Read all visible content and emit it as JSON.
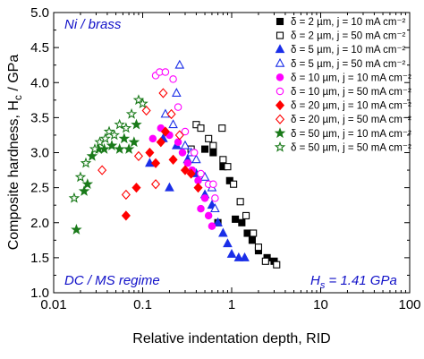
{
  "chart_data": {
    "type": "scatter",
    "title": "",
    "xlabel": "Relative indentation depth, RID",
    "ylabel": "Composite hardness, H_c / GPa",
    "xscale": "log",
    "xlim": [
      0.01,
      100
    ],
    "ylim": [
      1.0,
      5.0
    ],
    "xticks": [
      0.01,
      0.1,
      1,
      10,
      100
    ],
    "xtick_labels": [
      "0.01",
      "0.1",
      "1",
      "10",
      "100"
    ],
    "yticks": [
      1.0,
      1.5,
      2.0,
      2.5,
      3.0,
      3.5,
      4.0,
      4.5,
      5.0
    ],
    "ytick_labels": [
      "1.0",
      "1.5",
      "2.0",
      "2.5",
      "3.0",
      "3.5",
      "4.0",
      "4.5",
      "5.0"
    ],
    "grid": false,
    "legend_position": "top-right",
    "annotations": {
      "top_left": "Ni / brass",
      "bottom_left": "DC / MS regime",
      "bottom_right": "H_s = 1.41 GPa"
    },
    "series": [
      {
        "name": "δ = 2 µm, j = 10 mA cm⁻²",
        "marker": "square",
        "filled": true,
        "color": "#000000",
        "points": [
          [
            0.5,
            3.05
          ],
          [
            0.62,
            3.0
          ],
          [
            0.8,
            2.8
          ],
          [
            0.7,
            2.0
          ],
          [
            0.95,
            2.6
          ],
          [
            1.1,
            2.05
          ],
          [
            1.3,
            2.0
          ],
          [
            1.5,
            1.85
          ],
          [
            1.7,
            1.75
          ],
          [
            2.0,
            1.6
          ],
          [
            2.5,
            1.5
          ],
          [
            3.0,
            1.45
          ]
        ]
      },
      {
        "name": "δ = 2 µm, j = 50 mA cm⁻²",
        "marker": "square",
        "filled": false,
        "color": "#000000",
        "points": [
          [
            0.35,
            3.05
          ],
          [
            0.4,
            3.4
          ],
          [
            0.45,
            3.35
          ],
          [
            0.55,
            3.2
          ],
          [
            0.62,
            3.1
          ],
          [
            0.78,
            3.35
          ],
          [
            0.8,
            2.9
          ],
          [
            0.9,
            2.8
          ],
          [
            1.05,
            2.55
          ],
          [
            1.25,
            2.3
          ],
          [
            1.45,
            2.1
          ],
          [
            1.75,
            1.85
          ],
          [
            2.0,
            1.65
          ],
          [
            2.4,
            1.45
          ],
          [
            3.2,
            1.4
          ]
        ]
      },
      {
        "name": "δ = 5 µm, j = 10 mA cm⁻²",
        "marker": "triangle",
        "filled": true,
        "color": "#1a2ee8",
        "points": [
          [
            0.12,
            2.85
          ],
          [
            0.17,
            3.2
          ],
          [
            0.24,
            3.1
          ],
          [
            0.2,
            2.5
          ],
          [
            0.32,
            2.9
          ],
          [
            0.4,
            2.7
          ],
          [
            0.5,
            2.4
          ],
          [
            0.6,
            2.25
          ],
          [
            0.7,
            2.0
          ],
          [
            0.8,
            1.85
          ],
          [
            0.9,
            1.7
          ],
          [
            1.0,
            1.55
          ],
          [
            1.2,
            1.5
          ],
          [
            1.4,
            1.5
          ]
        ]
      },
      {
        "name": "δ = 5 µm, j = 50 mA cm⁻²",
        "marker": "triangle",
        "filled": false,
        "color": "#1a2ee8",
        "points": [
          [
            0.26,
            4.25
          ],
          [
            0.24,
            3.85
          ],
          [
            0.18,
            3.55
          ],
          [
            0.22,
            3.4
          ],
          [
            0.3,
            3.1
          ],
          [
            0.35,
            3.0
          ],
          [
            0.4,
            2.9
          ],
          [
            0.5,
            2.65
          ],
          [
            0.6,
            2.5
          ],
          [
            0.65,
            2.2
          ]
        ]
      },
      {
        "name": "δ = 10 µm, j = 10 mA cm⁻²",
        "marker": "circle",
        "filled": true,
        "color": "#ff00ff",
        "points": [
          [
            0.13,
            3.2
          ],
          [
            0.16,
            3.35
          ],
          [
            0.2,
            3.25
          ],
          [
            0.25,
            3.15
          ],
          [
            0.28,
            3.0
          ],
          [
            0.32,
            2.85
          ],
          [
            0.36,
            2.75
          ],
          [
            0.42,
            2.6
          ],
          [
            0.45,
            2.2
          ],
          [
            0.5,
            2.35
          ],
          [
            0.55,
            2.1
          ],
          [
            0.6,
            1.95
          ]
        ]
      },
      {
        "name": "δ = 10 µm, j = 50 mA cm⁻²",
        "marker": "circle",
        "filled": false,
        "color": "#ff00ff",
        "points": [
          [
            0.14,
            4.1
          ],
          [
            0.155,
            4.15
          ],
          [
            0.18,
            4.15
          ],
          [
            0.22,
            4.05
          ],
          [
            0.25,
            3.65
          ],
          [
            0.3,
            3.3
          ],
          [
            0.38,
            3.0
          ],
          [
            0.45,
            2.7
          ],
          [
            0.55,
            2.55
          ],
          [
            0.62,
            2.55
          ],
          [
            0.65,
            2.35
          ]
        ]
      },
      {
        "name": "δ = 20 µm, j = 10 mA cm⁻²",
        "marker": "diamond",
        "filled": true,
        "color": "#ff0000",
        "points": [
          [
            0.065,
            2.1
          ],
          [
            0.085,
            2.5
          ],
          [
            0.12,
            3.0
          ],
          [
            0.14,
            2.85
          ],
          [
            0.16,
            3.15
          ],
          [
            0.18,
            3.3
          ],
          [
            0.22,
            2.9
          ],
          [
            0.3,
            2.75
          ],
          [
            0.35,
            2.7
          ],
          [
            0.42,
            2.5
          ]
        ]
      },
      {
        "name": "δ = 20 µm, j = 50 mA cm⁻²",
        "marker": "diamond",
        "filled": false,
        "color": "#ff0000",
        "points": [
          [
            0.035,
            2.75
          ],
          [
            0.065,
            2.4
          ],
          [
            0.09,
            2.95
          ],
          [
            0.11,
            3.6
          ],
          [
            0.14,
            2.55
          ],
          [
            0.17,
            3.85
          ],
          [
            0.21,
            3.55
          ],
          [
            0.26,
            3.25
          ]
        ]
      },
      {
        "name": "δ = 50 µm, j = 10 mA cm⁻²",
        "marker": "star",
        "filled": true,
        "color": "#1a7a1a",
        "points": [
          [
            0.018,
            1.9
          ],
          [
            0.022,
            2.45
          ],
          [
            0.024,
            2.55
          ],
          [
            0.027,
            2.95
          ],
          [
            0.032,
            3.05
          ],
          [
            0.037,
            3.05
          ],
          [
            0.045,
            3.1
          ],
          [
            0.055,
            3.05
          ],
          [
            0.062,
            3.2
          ],
          [
            0.07,
            3.05
          ],
          [
            0.08,
            3.15
          ],
          [
            0.085,
            3.4
          ]
        ]
      },
      {
        "name": "δ = 50 µm, j = 50 mA cm⁻²",
        "marker": "star",
        "filled": false,
        "color": "#1a7a1a",
        "points": [
          [
            0.017,
            2.35
          ],
          [
            0.02,
            2.65
          ],
          [
            0.023,
            2.85
          ],
          [
            0.029,
            3.05
          ],
          [
            0.033,
            3.15
          ],
          [
            0.038,
            3.2
          ],
          [
            0.042,
            3.3
          ],
          [
            0.048,
            3.25
          ],
          [
            0.055,
            3.4
          ],
          [
            0.065,
            3.35
          ],
          [
            0.075,
            3.55
          ],
          [
            0.09,
            3.75
          ],
          [
            0.1,
            3.7
          ]
        ]
      }
    ]
  }
}
